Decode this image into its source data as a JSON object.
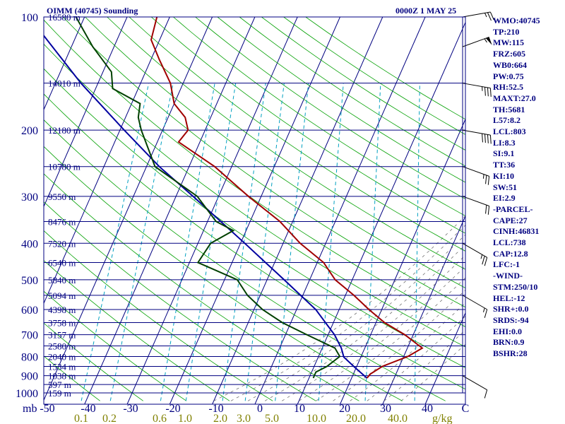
{
  "header": {
    "title": "OIMM (40745) Sounding",
    "datetime": "0000Z  1 MAY 25"
  },
  "params": [
    "WMO:40745",
    "TP:210",
    "MW:115",
    "FRZ:605",
    "WB0:664",
    "PW:0.75",
    "RH:52.5",
    "MAXT:27.0",
    "TH:5681",
    "L57:8.2",
    "LCL:803",
    "LI:8.3",
    "SI:9.1",
    "TT:36",
    "KI:10",
    "SW:51",
    "EI:2.9",
    "-PARCEL-",
    "CAPE:27",
    "CINH:46831",
    "LCL:738",
    "CAP:12.8",
    "LFC:-1",
    "-WIND-",
    "STM:250/10",
    "HEL:-12",
    "SHR+:0.0",
    "SRDS:-94",
    "EHI:0.0",
    "BRN:0.9",
    "BSHR:28"
  ],
  "colors": {
    "frame": "#000080",
    "isobar": "#000080",
    "isotherm": "#000080",
    "dry_adiabat": "#00a000",
    "mixing_ratio": "#00a0c0",
    "moist_adiabat": "#606060",
    "temperature": "#a00000",
    "dewpoint": "#004000",
    "parcel": "#0000a0",
    "wind": "#000000",
    "mixing_label": "#808000",
    "background": "#ffffff"
  },
  "chart_data": {
    "type": "skew-t log-p sounding",
    "pressure_labels": [
      "100",
      "200",
      "300",
      "400",
      "500",
      "600",
      "700",
      "800",
      "900",
      "1000"
    ],
    "pressure_axis_unit": "mb",
    "temperature_ticks": [
      "-50",
      "-40",
      "-30",
      "-20",
      "-10",
      "0",
      "10",
      "20",
      "30",
      "40",
      "C"
    ],
    "mixing_ratio_labels": [
      "0.1",
      "0.2",
      "0.6",
      "1.0",
      "2.0",
      "3.0",
      "5.0",
      "10.0",
      "20.0",
      "40.0"
    ],
    "mixing_ratio_unit": "g/kg",
    "height_labels": [
      {
        "p": 100,
        "label": "16580 m"
      },
      {
        "p": 150,
        "label": "14010 m"
      },
      {
        "p": 200,
        "label": "12180 m"
      },
      {
        "p": 250,
        "label": "10780 m"
      },
      {
        "p": 300,
        "label": "9550 m"
      },
      {
        "p": 350,
        "label": "8476 m"
      },
      {
        "p": 400,
        "label": "7520 m"
      },
      {
        "p": 450,
        "label": "6540 m"
      },
      {
        "p": 500,
        "label": "5840 m"
      },
      {
        "p": 550,
        "label": "5094 m"
      },
      {
        "p": 600,
        "label": "4398 m"
      },
      {
        "p": 650,
        "label": "3758 m"
      },
      {
        "p": 700,
        "label": "3157 m"
      },
      {
        "p": 750,
        "label": "2580 m"
      },
      {
        "p": 800,
        "label": "2040 m"
      },
      {
        "p": 850,
        "label": "1534 m"
      },
      {
        "p": 900,
        "label": "1038 m"
      },
      {
        "p": 950,
        "label": "597 m"
      },
      {
        "p": 1000,
        "label": "159 m"
      }
    ],
    "temperature_profile": [
      [
        913,
        23.6
      ],
      [
        890,
        24
      ],
      [
        850,
        26
      ],
      [
        800,
        31
      ],
      [
        760,
        33.5
      ],
      [
        700,
        28
      ],
      [
        650,
        22
      ],
      [
        600,
        17
      ],
      [
        550,
        12
      ],
      [
        500,
        6
      ],
      [
        450,
        1.5
      ],
      [
        400,
        -6
      ],
      [
        350,
        -13
      ],
      [
        300,
        -23
      ],
      [
        250,
        -34
      ],
      [
        215,
        -45
      ],
      [
        200,
        -44
      ],
      [
        185,
        -46
      ],
      [
        170,
        -50
      ],
      [
        150,
        -53
      ],
      [
        130,
        -58
      ],
      [
        115,
        -62
      ],
      [
        100,
        -63
      ]
    ],
    "dewpoint_profile": [
      [
        913,
        11
      ],
      [
        880,
        11
      ],
      [
        850,
        13
      ],
      [
        800,
        15
      ],
      [
        760,
        13
      ],
      [
        700,
        5
      ],
      [
        650,
        -2
      ],
      [
        600,
        -8
      ],
      [
        550,
        -13
      ],
      [
        500,
        -17
      ],
      [
        450,
        -28
      ],
      [
        400,
        -27
      ],
      [
        370,
        -23
      ],
      [
        350,
        -28
      ],
      [
        300,
        -35
      ],
      [
        250,
        -48
      ],
      [
        200,
        -55
      ],
      [
        185,
        -57
      ],
      [
        170,
        -58
      ],
      [
        155,
        -66
      ],
      [
        140,
        -68
      ],
      [
        120,
        -75
      ],
      [
        100,
        -82
      ]
    ],
    "parcel_profile": [
      [
        913,
        23.6
      ],
      [
        860,
        20
      ],
      [
        803,
        16
      ],
      [
        760,
        14.5
      ],
      [
        700,
        11.5
      ],
      [
        600,
        4.5
      ],
      [
        500,
        -6
      ],
      [
        400,
        -19
      ],
      [
        300,
        -36
      ],
      [
        250,
        -47
      ],
      [
        200,
        -59
      ],
      [
        150,
        -74
      ],
      [
        100,
        -93
      ]
    ],
    "wind_barbs": [
      {
        "p": 100,
        "dir": 260,
        "kt": 25
      },
      {
        "p": 120,
        "dir": 250,
        "kt": 55
      },
      {
        "p": 150,
        "dir": 280,
        "kt": 35
      },
      {
        "p": 200,
        "dir": 280,
        "kt": 40
      },
      {
        "p": 250,
        "dir": 290,
        "kt": 25
      },
      {
        "p": 300,
        "dir": 290,
        "kt": 20
      },
      {
        "p": 400,
        "dir": 300,
        "kt": 25
      },
      {
        "p": 550,
        "dir": 300,
        "kt": 15
      },
      {
        "p": 900,
        "dir": 300,
        "kt": 10
      }
    ]
  }
}
